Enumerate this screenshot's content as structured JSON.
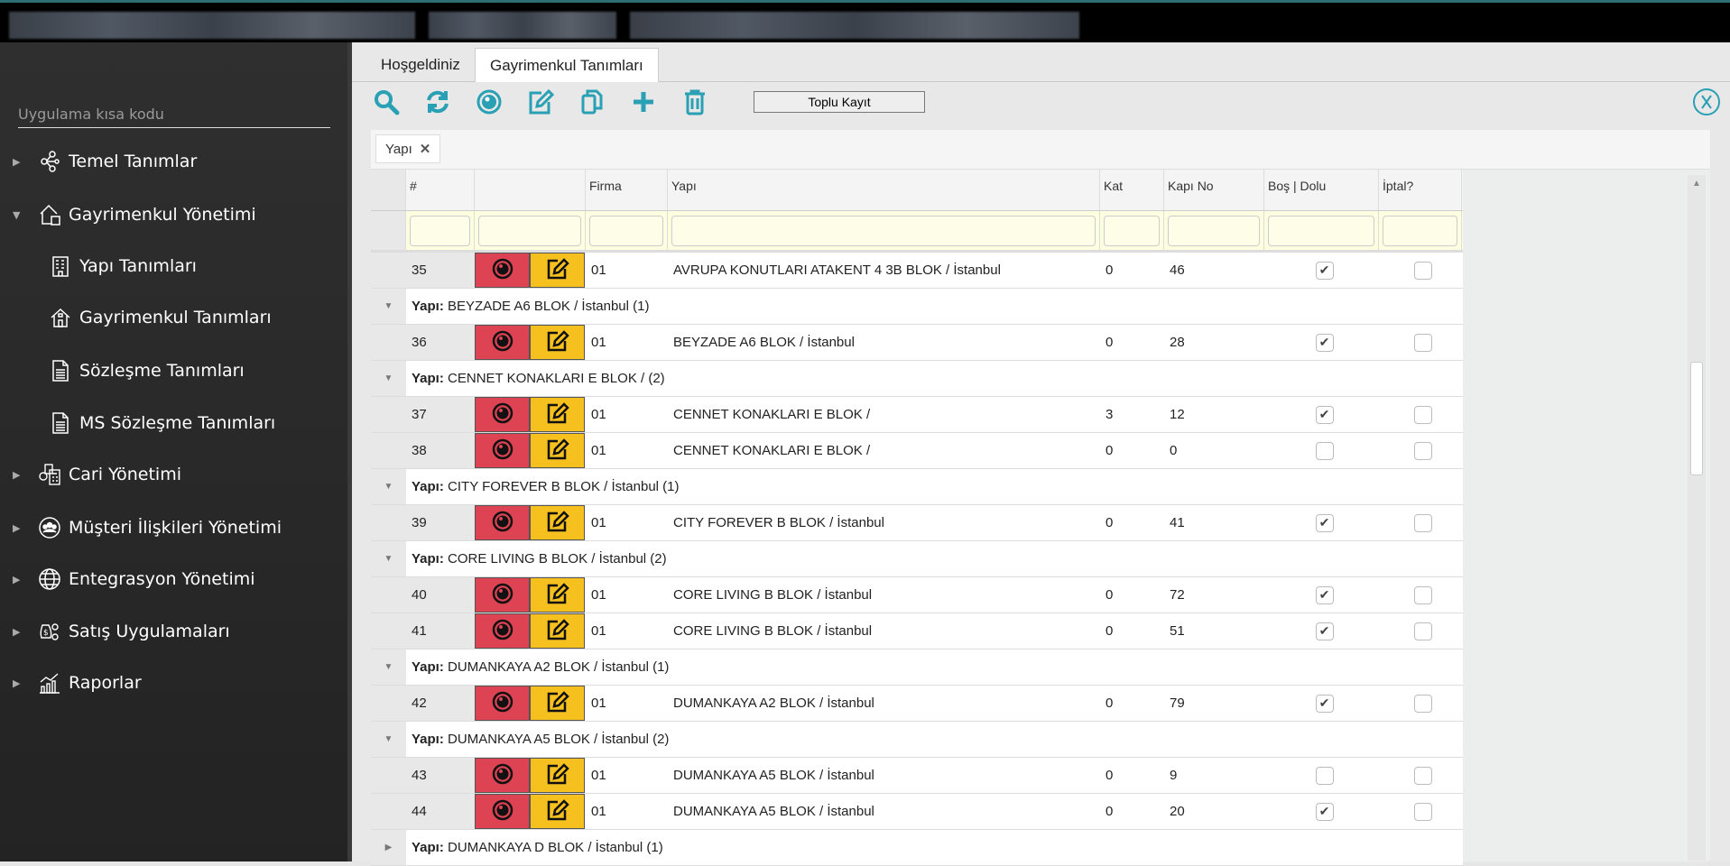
{
  "sidebar": {
    "search_placeholder": "Uygulama kısa kodu",
    "items": [
      {
        "label": "Temel Tanımlar",
        "icon": "share-nodes-icon",
        "level": 0,
        "state": "collapsed"
      },
      {
        "label": "Gayrimenkul Yönetimi",
        "icon": "house-db-icon",
        "level": 0,
        "state": "expanded"
      },
      {
        "label": "Yapı Tanımları",
        "icon": "building-icon",
        "level": 1
      },
      {
        "label": "Gayrimenkul Tanımları",
        "icon": "house-icon",
        "level": 1
      },
      {
        "label": "Sözleşme Tanımları",
        "icon": "document-icon",
        "level": 1
      },
      {
        "label": "MS Sözleşme Tanımları",
        "icon": "document-icon",
        "level": 1
      },
      {
        "label": "Cari Yönetimi",
        "icon": "accounting-icon",
        "level": 0,
        "state": "collapsed"
      },
      {
        "label": "Müşteri İlişkileri Yönetimi",
        "icon": "customers-icon",
        "level": 0,
        "state": "collapsed"
      },
      {
        "label": "Entegrasyon Yönetimi",
        "icon": "globe-icon",
        "level": 0,
        "state": "collapsed"
      },
      {
        "label": "Satış Uygulamaları",
        "icon": "money-gear-icon",
        "level": 0,
        "state": "collapsed"
      },
      {
        "label": "Raporlar",
        "icon": "chart-icon",
        "level": 0,
        "state": "collapsed"
      }
    ]
  },
  "tabs": [
    {
      "label": "Hoşgeldiniz",
      "active": false
    },
    {
      "label": "Gayrimenkul Tanımları",
      "active": true
    }
  ],
  "toolbar": {
    "icons": [
      "search-icon",
      "refresh-icon",
      "view-icon",
      "edit-icon",
      "copy-icon",
      "add-icon",
      "delete-icon"
    ],
    "bulk_save": "Toplu Kayıt",
    "accent": "#2aa0b4"
  },
  "group_chip": "Yapı",
  "group_label": "Yapı:",
  "columns": [
    "#",
    "",
    "Firma",
    "Yapı",
    "Kat",
    "Kapı No",
    "Boş | Dolu",
    "İptal?"
  ],
  "rows": [
    {
      "type": "row",
      "no": "35",
      "firma": "01",
      "yapi": "AVRUPA KONUTLARI ATAKENT 4 3B BLOK / İstanbul",
      "kat": "0",
      "kapi": "46",
      "dolu": true,
      "iptal": false
    },
    {
      "type": "group",
      "text": "BEYZADE A6 BLOK / İstanbul (1)",
      "expanded": true
    },
    {
      "type": "row",
      "no": "36",
      "firma": "01",
      "yapi": "BEYZADE A6 BLOK / İstanbul",
      "kat": "0",
      "kapi": "28",
      "dolu": true,
      "iptal": false
    },
    {
      "type": "group",
      "text": "CENNET KONAKLARI E BLOK / (2)",
      "expanded": true
    },
    {
      "type": "row",
      "no": "37",
      "firma": "01",
      "yapi": "CENNET KONAKLARI E BLOK /",
      "kat": "3",
      "kapi": "12",
      "dolu": true,
      "iptal": false
    },
    {
      "type": "row",
      "no": "38",
      "firma": "01",
      "yapi": "CENNET KONAKLARI E BLOK /",
      "kat": "0",
      "kapi": "0",
      "dolu": false,
      "iptal": false
    },
    {
      "type": "group",
      "text": "CITY FOREVER B BLOK / İstanbul (1)",
      "expanded": true
    },
    {
      "type": "row",
      "no": "39",
      "firma": "01",
      "yapi": "CITY FOREVER B BLOK / İstanbul",
      "kat": "0",
      "kapi": "41",
      "dolu": true,
      "iptal": false
    },
    {
      "type": "group",
      "text": "CORE LIVING B BLOK / İstanbul (2)",
      "expanded": true
    },
    {
      "type": "row",
      "no": "40",
      "firma": "01",
      "yapi": "CORE LIVING B BLOK / İstanbul",
      "kat": "0",
      "kapi": "72",
      "dolu": true,
      "iptal": false
    },
    {
      "type": "row",
      "no": "41",
      "firma": "01",
      "yapi": "CORE LIVING B BLOK / İstanbul",
      "kat": "0",
      "kapi": "51",
      "dolu": true,
      "iptal": false
    },
    {
      "type": "group",
      "text": "DUMANKAYA A2 BLOK / İstanbul (1)",
      "expanded": true
    },
    {
      "type": "row",
      "no": "42",
      "firma": "01",
      "yapi": "DUMANKAYA A2 BLOK / İstanbul",
      "kat": "0",
      "kapi": "79",
      "dolu": true,
      "iptal": false
    },
    {
      "type": "group",
      "text": "DUMANKAYA A5 BLOK / İstanbul (2)",
      "expanded": true
    },
    {
      "type": "row",
      "no": "43",
      "firma": "01",
      "yapi": "DUMANKAYA A5 BLOK / İstanbul",
      "kat": "0",
      "kapi": "9",
      "dolu": false,
      "iptal": false
    },
    {
      "type": "row",
      "no": "44",
      "firma": "01",
      "yapi": "DUMANKAYA A5 BLOK / İstanbul",
      "kat": "0",
      "kapi": "20",
      "dolu": true,
      "iptal": false
    },
    {
      "type": "group",
      "text": "DUMANKAYA D BLOK / İstanbul (1)",
      "expanded": false
    }
  ],
  "colors": {
    "view_button": "#dd4353",
    "edit_button": "#f6c01f",
    "filter_row": "#fdfde0"
  }
}
